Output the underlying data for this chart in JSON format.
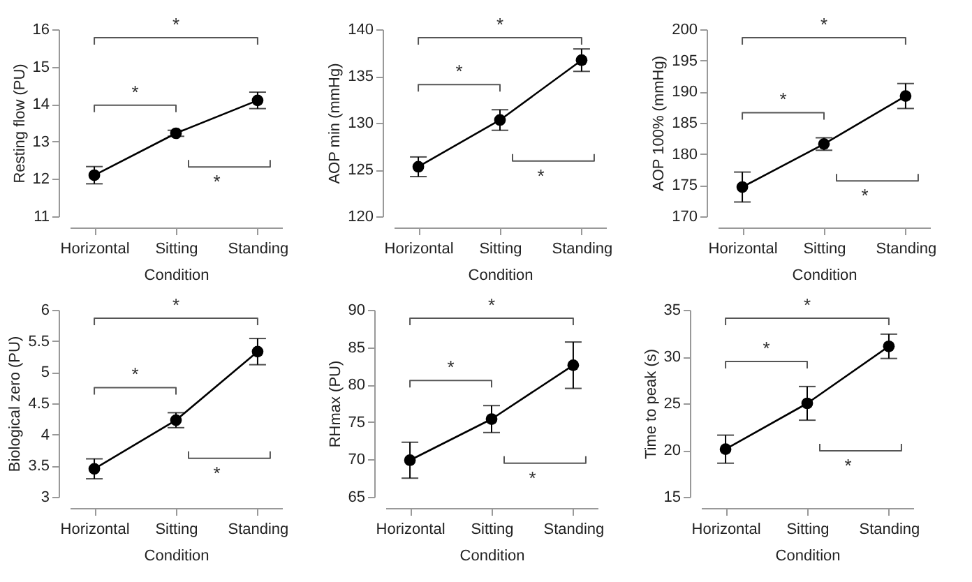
{
  "chart_data": [
    {
      "type": "line",
      "ylabel": "Resting flow (PU)",
      "xlabel": "Condition",
      "categories": [
        "Horizontal",
        "Sitting",
        "Standing"
      ],
      "series": [
        {
          "color": "#000000",
          "values": [
            12.1,
            13.22,
            14.1
          ],
          "errors": [
            0.23,
            0.08,
            0.22
          ]
        }
      ],
      "ylim": [
        11,
        16
      ],
      "yticks": [
        11,
        12,
        13,
        14,
        15,
        16
      ],
      "grid": false,
      "marker": "circle",
      "line_style": "solid",
      "annotations": [
        "*",
        "*",
        "*"
      ]
    },
    {
      "type": "line",
      "ylabel": "AOP min (mmHg)",
      "xlabel": "Condition",
      "categories": [
        "Horizontal",
        "Sitting",
        "Standing"
      ],
      "series": [
        {
          "color": "#000000",
          "values": [
            125.3,
            130.3,
            136.7
          ],
          "errors": [
            1.05,
            1.1,
            1.2
          ]
        }
      ],
      "ylim": [
        120,
        140
      ],
      "yticks": [
        120,
        125,
        130,
        135,
        140
      ],
      "grid": false,
      "marker": "circle",
      "line_style": "solid",
      "annotations": [
        "*",
        "*",
        "*"
      ]
    },
    {
      "type": "line",
      "ylabel": "AOP 100% (mmHg)",
      "xlabel": "Condition",
      "categories": [
        "Horizontal",
        "Sitting",
        "Standing"
      ],
      "series": [
        {
          "color": "#000000",
          "values": [
            174.7,
            181.6,
            189.3
          ],
          "errors": [
            2.4,
            1.0,
            2.0
          ]
        }
      ],
      "ylim": [
        170,
        200
      ],
      "yticks": [
        170,
        175,
        180,
        185,
        190,
        195,
        200
      ],
      "grid": false,
      "marker": "circle",
      "line_style": "solid",
      "annotations": [
        "*",
        "*",
        "*"
      ]
    },
    {
      "type": "line",
      "ylabel": "Biological zero (PU)",
      "xlabel": "Condition",
      "categories": [
        "Horizontal",
        "Sitting",
        "Standing"
      ],
      "series": [
        {
          "color": "#000000",
          "values": [
            3.45,
            4.23,
            5.33
          ],
          "errors": [
            0.16,
            0.12,
            0.21
          ]
        }
      ],
      "ylim": [
        3,
        6
      ],
      "yticks": [
        3,
        3.5,
        4,
        4.5,
        5,
        5.5,
        6
      ],
      "grid": false,
      "marker": "circle",
      "line_style": "solid",
      "annotations": [
        "*",
        "*",
        "*"
      ]
    },
    {
      "type": "line",
      "ylabel": "RHmax (PU)",
      "xlabel": "Condition",
      "categories": [
        "Horizontal",
        "Sitting",
        "Standing"
      ],
      "series": [
        {
          "color": "#000000",
          "values": [
            69.9,
            75.4,
            82.6
          ],
          "errors": [
            2.4,
            1.8,
            3.1
          ]
        }
      ],
      "ylim": [
        65,
        90
      ],
      "yticks": [
        65,
        70,
        75,
        80,
        85,
        90
      ],
      "grid": false,
      "marker": "circle",
      "line_style": "solid",
      "annotations": [
        "*",
        "*",
        "*"
      ]
    },
    {
      "type": "line",
      "ylabel": "Time to peak (s)",
      "xlabel": "Condition",
      "categories": [
        "Horizontal",
        "Sitting",
        "Standing"
      ],
      "series": [
        {
          "color": "#000000",
          "values": [
            20.1,
            25.0,
            31.1
          ],
          "errors": [
            1.5,
            1.8,
            1.3
          ]
        }
      ],
      "ylim": [
        15,
        35
      ],
      "yticks": [
        15,
        20,
        25,
        30,
        35
      ],
      "grid": false,
      "marker": "circle",
      "line_style": "solid",
      "annotations": [
        "*",
        "*",
        "*"
      ]
    }
  ]
}
